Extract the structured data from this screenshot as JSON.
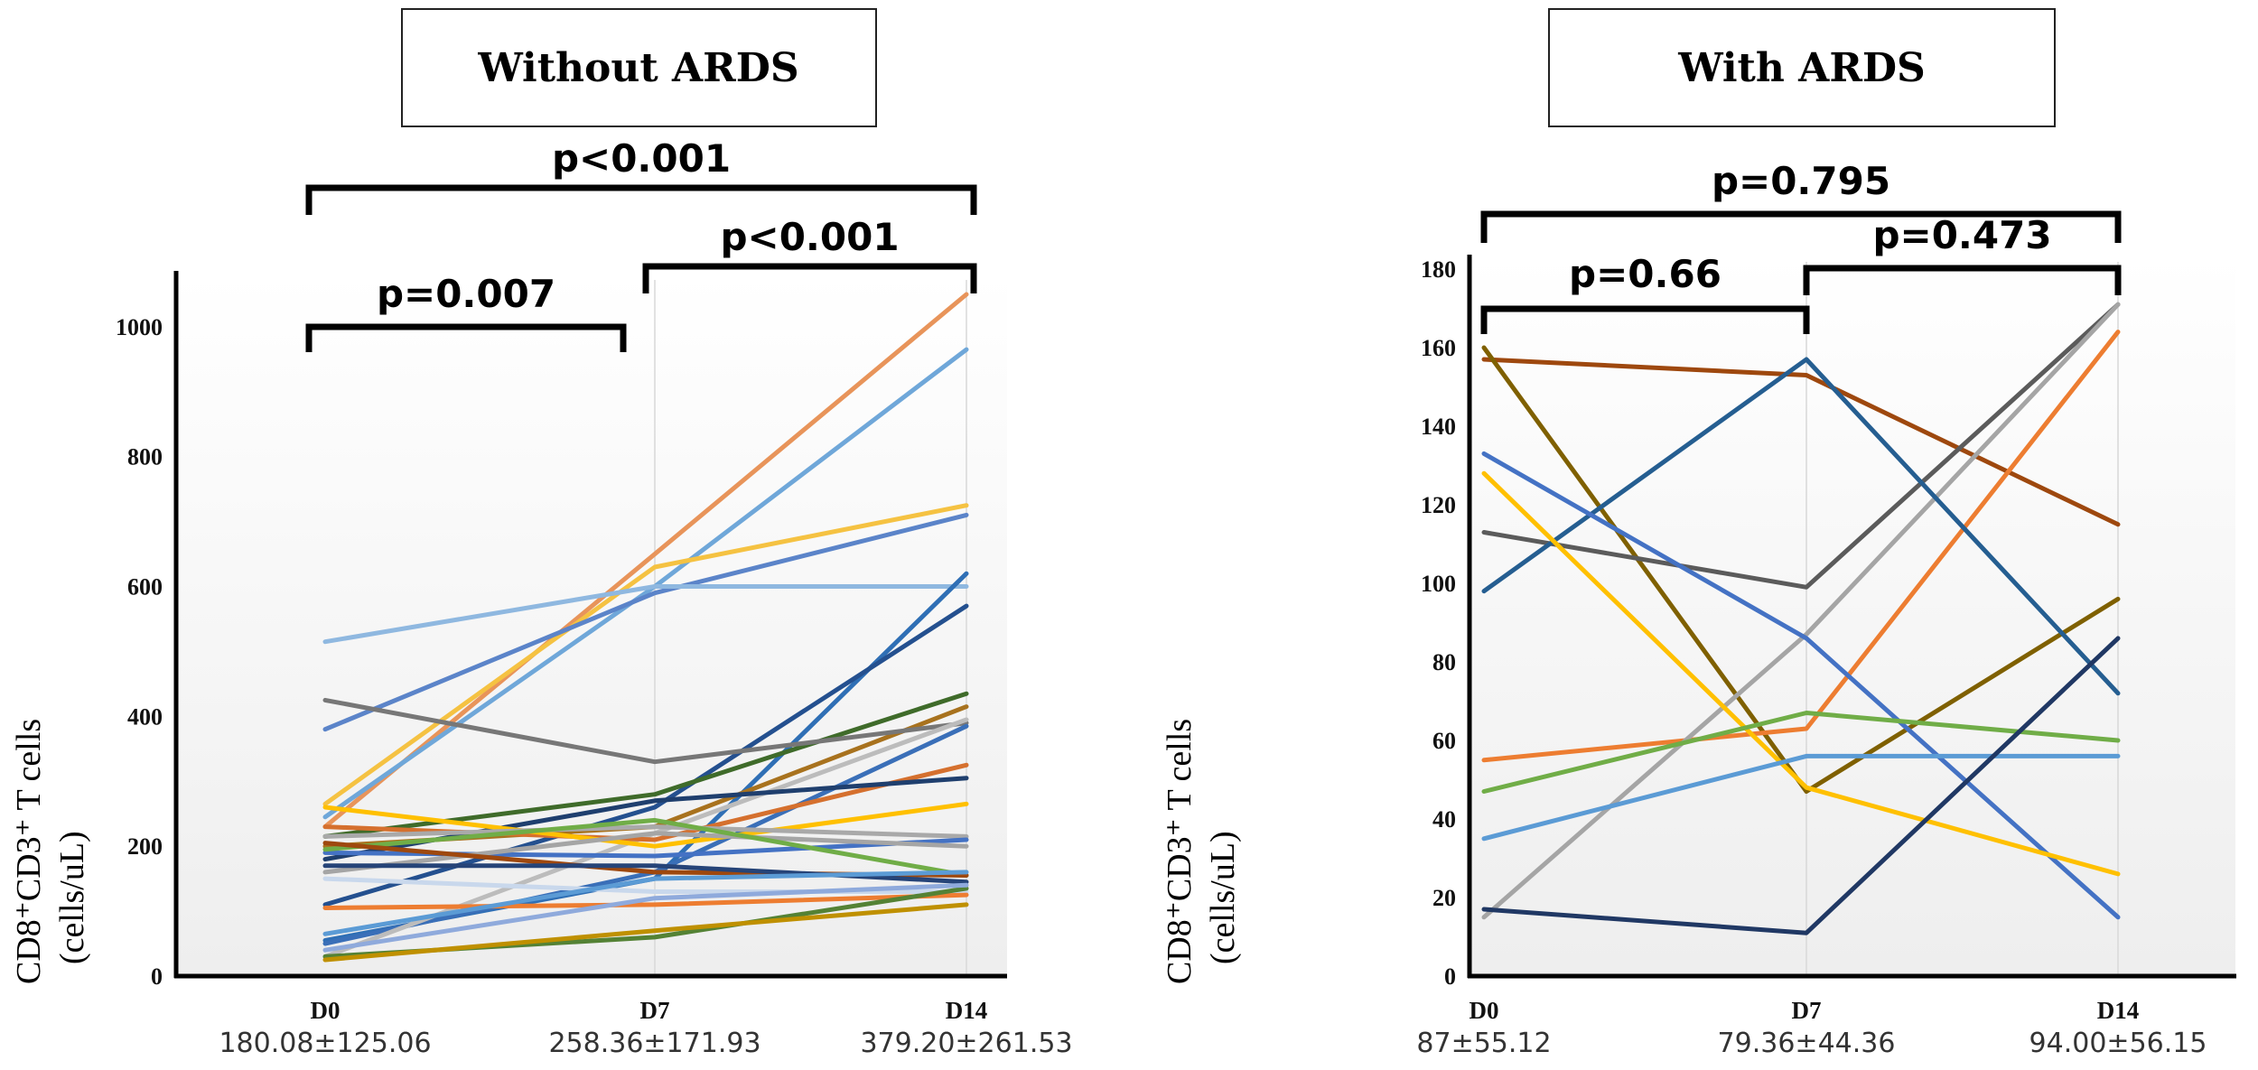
{
  "chart_data": [
    {
      "type": "line",
      "title": "Without ARDS",
      "ylabel_main": "CD8⁺CD3⁺ T cells",
      "ylabel_unit": "(cells/uL)",
      "categories": [
        "D0",
        "D7",
        "D14"
      ],
      "category_stats": [
        "180.08±125.06",
        "258.36±171.93",
        "379.20±261.53"
      ],
      "ylim": [
        0,
        1100
      ],
      "yticks": [
        "0",
        "200",
        "400",
        "600",
        "800",
        "1000"
      ],
      "comparisons": [
        {
          "label": "p<0.001",
          "from": 0,
          "to": 2
        },
        {
          "label": "p=0.007",
          "from": 0,
          "to": 1
        },
        {
          "label": "p<0.001",
          "from": 1,
          "to": 2
        }
      ],
      "series": [
        {
          "color": "#e8945a",
          "values": [
            230,
            650,
            1050
          ]
        },
        {
          "color": "#6fa7d9",
          "values": [
            245,
            600,
            965
          ]
        },
        {
          "color": "#f5c242",
          "values": [
            265,
            630,
            725
          ]
        },
        {
          "color": "#5b84c9",
          "values": [
            380,
            590,
            710
          ]
        },
        {
          "color": "#8fb8e0",
          "values": [
            515,
            600,
            600
          ]
        },
        {
          "color": "#2f6fb5",
          "values": [
            55,
            150,
            620
          ]
        },
        {
          "color": "#24508f",
          "values": [
            110,
            260,
            570
          ]
        },
        {
          "color": "#3f6b2a",
          "values": [
            215,
            280,
            435
          ]
        },
        {
          "color": "#a8721e",
          "values": [
            200,
            230,
            415
          ]
        },
        {
          "color": "#777777",
          "values": [
            425,
            330,
            390
          ]
        },
        {
          "color": "#3a6fb8",
          "values": [
            50,
            160,
            385
          ]
        },
        {
          "color": "#bcbcbc",
          "values": [
            30,
            220,
            395
          ]
        },
        {
          "color": "#d5702e",
          "values": [
            230,
            210,
            325
          ]
        },
        {
          "color": "#1f3f6e",
          "values": [
            180,
            270,
            305
          ]
        },
        {
          "color": "#ffc000",
          "values": [
            260,
            200,
            265
          ]
        },
        {
          "color": "#a9a9a9",
          "values": [
            215,
            230,
            215
          ]
        },
        {
          "color": "#4472c4",
          "values": [
            190,
            185,
            210
          ]
        },
        {
          "color": "#a5a5a5",
          "values": [
            160,
            220,
            200
          ]
        },
        {
          "color": "#70ad47",
          "values": [
            195,
            240,
            155
          ]
        },
        {
          "color": "#9e480e",
          "values": [
            205,
            160,
            155
          ]
        },
        {
          "color": "#264478",
          "values": [
            170,
            170,
            145
          ]
        },
        {
          "color": "#c9d8ec",
          "values": [
            150,
            130,
            130
          ]
        },
        {
          "color": "#ed7d31",
          "values": [
            105,
            110,
            125
          ]
        },
        {
          "color": "#5b9bd5",
          "values": [
            65,
            150,
            160
          ]
        },
        {
          "color": "#548235",
          "values": [
            30,
            60,
            135
          ]
        },
        {
          "color": "#bf9000",
          "values": [
            25,
            70,
            110
          ]
        },
        {
          "color": "#8faadc",
          "values": [
            40,
            120,
            140
          ]
        }
      ]
    },
    {
      "type": "line",
      "title": "With ARDS",
      "ylabel_main": "CD8⁺CD3⁺ T cells",
      "ylabel_unit": "(cells/uL)",
      "categories": [
        "D0",
        "D7",
        "D14"
      ],
      "category_stats": [
        "87±55.12",
        "79.36±44.36",
        "94.00±56.15"
      ],
      "ylim": [
        0,
        180
      ],
      "yticks": [
        "0",
        "20",
        "40",
        "60",
        "80",
        "100",
        "120",
        "140",
        "160",
        "180"
      ],
      "comparisons": [
        {
          "label": "p=0.795",
          "from": 0,
          "to": 2
        },
        {
          "label": "p=0.66",
          "from": 0,
          "to": 1
        },
        {
          "label": "p=0.473",
          "from": 1,
          "to": 2
        }
      ],
      "series": [
        {
          "color": "#9e480e",
          "values": [
            157,
            153,
            115
          ]
        },
        {
          "color": "#7f6000",
          "values": [
            160,
            47,
            96
          ]
        },
        {
          "color": "#ed7d31",
          "values": [
            55,
            63,
            164
          ]
        },
        {
          "color": "#5b5b5b",
          "values": [
            113,
            99,
            171
          ]
        },
        {
          "color": "#a5a5a5",
          "values": [
            15,
            87,
            171
          ]
        },
        {
          "color": "#255e91",
          "values": [
            98,
            157,
            72
          ]
        },
        {
          "color": "#4472c4",
          "values": [
            133,
            86,
            15
          ]
        },
        {
          "color": "#ffc000",
          "values": [
            128,
            48,
            26
          ]
        },
        {
          "color": "#70ad47",
          "values": [
            47,
            67,
            60
          ]
        },
        {
          "color": "#5b9bd5",
          "values": [
            35,
            56,
            56
          ]
        },
        {
          "color": "#203864",
          "values": [
            17,
            11,
            86
          ]
        }
      ]
    }
  ]
}
